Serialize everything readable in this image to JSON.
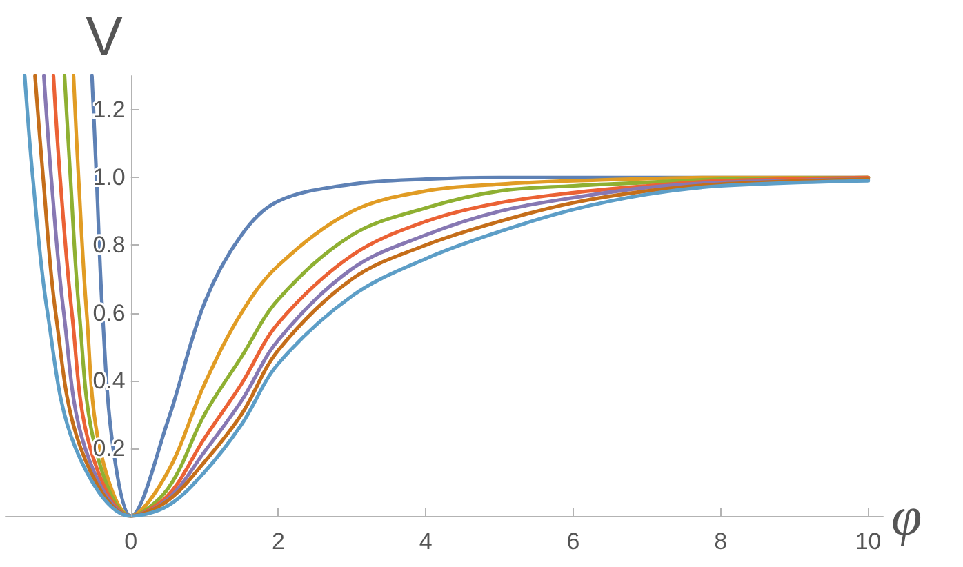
{
  "chart_data": {
    "type": "line",
    "xlabel": "φ",
    "ylabel": "V",
    "xlim": [
      -1.7,
      10.2
    ],
    "ylim": [
      0,
      1.3
    ],
    "xticks": [
      0,
      2,
      4,
      6,
      8,
      10
    ],
    "yticks": [
      0.2,
      0.4,
      0.6,
      0.8,
      {
        "value": 1,
        "label": "1.0"
      },
      1.2
    ],
    "grid": false,
    "marker": "none",
    "line_style": "solid",
    "series": [
      {
        "color": "#5e81b5",
        "x": [
          -0.528,
          -0.466,
          -0.385,
          -0.24,
          0,
          0.5,
          1,
          1.5,
          2,
          3,
          4,
          5,
          6,
          8,
          10
        ],
        "values": [
          1.3,
          1.0,
          0.6,
          0.2,
          0,
          0.28,
          0.63,
          0.83,
          0.93,
          0.98,
          0.995,
          1.0,
          1.0,
          1.0,
          1.0
        ]
      },
      {
        "color": "#e19c24",
        "x": [
          -0.778,
          -0.71,
          -0.6,
          -0.42,
          0,
          0.5,
          1,
          1.5,
          2,
          3,
          4,
          5,
          6,
          8,
          10
        ],
        "values": [
          1.3,
          1.0,
          0.6,
          0.2,
          0,
          0.13,
          0.39,
          0.6,
          0.74,
          0.9,
          0.96,
          0.98,
          0.99,
          1.0,
          1.0
        ]
      },
      {
        "color": "#8fb032",
        "x": [
          -0.9,
          -0.82,
          -0.7,
          -0.48,
          0,
          0.5,
          1,
          1.5,
          2,
          3,
          4,
          5,
          6,
          7,
          8,
          10
        ],
        "values": [
          1.3,
          1.0,
          0.6,
          0.2,
          0,
          0.08,
          0.3,
          0.47,
          0.64,
          0.83,
          0.91,
          0.96,
          0.975,
          0.985,
          0.995,
          1.0
        ]
      },
      {
        "color": "#eb6235",
        "x": [
          -1.05,
          -0.96,
          -0.8,
          -0.55,
          0,
          0.5,
          1,
          1.5,
          2,
          3,
          4,
          5,
          6,
          7,
          8,
          10
        ],
        "values": [
          1.3,
          1.0,
          0.6,
          0.2,
          0,
          0.06,
          0.23,
          0.39,
          0.57,
          0.77,
          0.87,
          0.925,
          0.955,
          0.975,
          0.99,
          1.0
        ]
      },
      {
        "color": "#8778b3",
        "x": [
          -1.18,
          -1.08,
          -0.91,
          -0.62,
          0,
          0.5,
          1,
          1.5,
          2,
          3,
          4,
          5,
          6,
          7,
          8,
          10
        ],
        "values": [
          1.3,
          1.0,
          0.6,
          0.2,
          0,
          0.05,
          0.19,
          0.34,
          0.52,
          0.73,
          0.83,
          0.9,
          0.94,
          0.97,
          0.985,
          0.995
        ]
      },
      {
        "color": "#c56e1a",
        "x": [
          -1.3,
          -1.19,
          -1.02,
          -0.68,
          0,
          0.5,
          1,
          1.5,
          2,
          3,
          4,
          5,
          6,
          7,
          8,
          10
        ],
        "values": [
          1.3,
          1.0,
          0.6,
          0.2,
          0,
          0.045,
          0.16,
          0.3,
          0.49,
          0.7,
          0.8,
          0.87,
          0.925,
          0.96,
          0.98,
          0.995
        ]
      },
      {
        "color": "#5d9ec7",
        "x": [
          -1.44,
          -1.33,
          -1.13,
          -0.75,
          0,
          0.5,
          1,
          1.5,
          2,
          3,
          4,
          5,
          6,
          7,
          8,
          10
        ],
        "values": [
          1.3,
          1.0,
          0.6,
          0.2,
          0,
          0.03,
          0.13,
          0.27,
          0.45,
          0.65,
          0.76,
          0.84,
          0.905,
          0.95,
          0.975,
          0.99
        ]
      }
    ]
  }
}
